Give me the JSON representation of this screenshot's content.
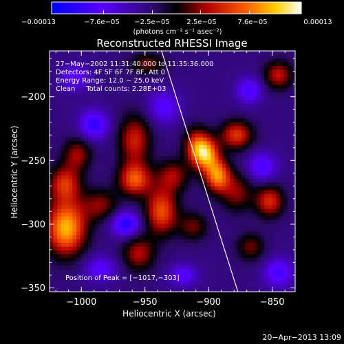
{
  "chart_data": {
    "type": "heatmap",
    "title": "Reconstructed RHESSI Image",
    "xlabel": "Heliocentric X (arcsec)",
    "ylabel": "Heliocentric Y (arcsec)",
    "xlim": [
      -1025,
      -832
    ],
    "ylim": [
      -353,
      -164
    ],
    "x_ticks": [
      -1000,
      -950,
      -900,
      -850
    ],
    "x_tick_labels": [
      "−1000",
      "−950",
      "−900",
      "−850"
    ],
    "y_ticks": [
      -350,
      -300,
      -250,
      -200
    ],
    "y_tick_labels": [
      "−350",
      "−300",
      "−250",
      "−200"
    ],
    "colorbar": {
      "min": -0.00013,
      "max": 0.00013,
      "ticks": [
        -0.00013,
        -7.6e-05,
        -2.5e-05,
        2.5e-05,
        7.6e-05,
        0.00013
      ],
      "tick_labels": [
        "−0.00013",
        "−7.6e−05",
        "−2.5e−05",
        "2.5e−05",
        "7.6e−05",
        "0.00013"
      ],
      "units_label": "(photons cm⁻² s⁻¹ asec⁻²)"
    },
    "annotations": [
      "27−May−2002 11:31:40.000 to 11:35:36.000",
      "Detectors: 4F 5F 6F 7F 8F, Att 0",
      "Energy Range: 12.0 − 25.0 keV",
      "Clean     Total counts: 2.28E+03"
    ],
    "peak_label": "Position of Peak = [−1017,−303]",
    "peak": [
      -1017,
      -303
    ],
    "limb_line": [
      [
        -937,
        -164
      ],
      [
        -877,
        -353
      ]
    ],
    "blobs": [
      {
        "x": -1012,
        "y": -303,
        "sx": 11,
        "sy": 15,
        "v": 0.00013
      },
      {
        "x": -1013,
        "y": -268,
        "sx": 9,
        "sy": 10,
        "v": 8e-05
      },
      {
        "x": -1003,
        "y": -245,
        "sx": 8,
        "sy": 9,
        "v": 6e-05
      },
      {
        "x": -985,
        "y": -285,
        "sx": 10,
        "sy": 9,
        "v": 5.5e-05
      },
      {
        "x": -958,
        "y": -234,
        "sx": 9,
        "sy": 14,
        "v": 7.5e-05
      },
      {
        "x": -958,
        "y": -265,
        "sx": 9,
        "sy": 9,
        "v": 9.5e-05
      },
      {
        "x": -955,
        "y": -323,
        "sx": 9,
        "sy": 10,
        "v": 6.5e-05
      },
      {
        "x": -937,
        "y": -290,
        "sx": 9,
        "sy": 13,
        "v": 9.5e-05
      },
      {
        "x": -928,
        "y": -262,
        "sx": 9,
        "sy": 9,
        "v": 6e-05
      },
      {
        "x": -910,
        "y": -238,
        "sx": 7,
        "sy": 10,
        "v": 7.5e-05
      },
      {
        "x": -902,
        "y": -245,
        "sx": 7,
        "sy": 9,
        "v": 0.000115
      },
      {
        "x": -893,
        "y": -262,
        "sx": 7,
        "sy": 9,
        "v": 0.00011
      },
      {
        "x": -878,
        "y": -230,
        "sx": 9,
        "sy": 8,
        "v": 8.5e-05
      },
      {
        "x": -878,
        "y": -275,
        "sx": 9,
        "sy": 11,
        "v": 5.5e-05
      },
      {
        "x": -852,
        "y": -282,
        "sx": 8,
        "sy": 9,
        "v": 8e-05
      },
      {
        "x": -845,
        "y": -183,
        "sx": 8,
        "sy": 8,
        "v": 7e-05
      },
      {
        "x": -867,
        "y": -318,
        "sx": 8,
        "sy": 8,
        "v": 5e-05
      },
      {
        "x": -912,
        "y": -302,
        "sx": 8,
        "sy": 8,
        "v": 5e-05
      },
      {
        "x": -948,
        "y": -174,
        "sx": 10,
        "sy": 6,
        "v": 5e-05
      },
      {
        "x": -990,
        "y": -222,
        "sx": 8,
        "sy": 8,
        "v": -7e-05
      },
      {
        "x": -935,
        "y": -208,
        "sx": 9,
        "sy": 9,
        "v": -5e-05
      },
      {
        "x": -965,
        "y": -300,
        "sx": 8,
        "sy": 7,
        "v": -8e-05
      },
      {
        "x": -858,
        "y": -255,
        "sx": 8,
        "sy": 8,
        "v": -6e-05
      },
      {
        "x": -868,
        "y": -195,
        "sx": 7,
        "sy": 7,
        "v": -6e-05
      },
      {
        "x": -985,
        "y": -335,
        "sx": 9,
        "sy": 7,
        "v": -5e-05
      },
      {
        "x": -920,
        "y": -340,
        "sx": 8,
        "sy": 6,
        "v": -5e-05
      },
      {
        "x": -845,
        "y": -338,
        "sx": 8,
        "sy": 8,
        "v": -6e-05
      },
      {
        "x": -1005,
        "y": -185,
        "sx": 8,
        "sy": 7,
        "v": -5e-05
      }
    ]
  },
  "footer": {
    "timestamp": "20−Apr−2013 13:09"
  }
}
